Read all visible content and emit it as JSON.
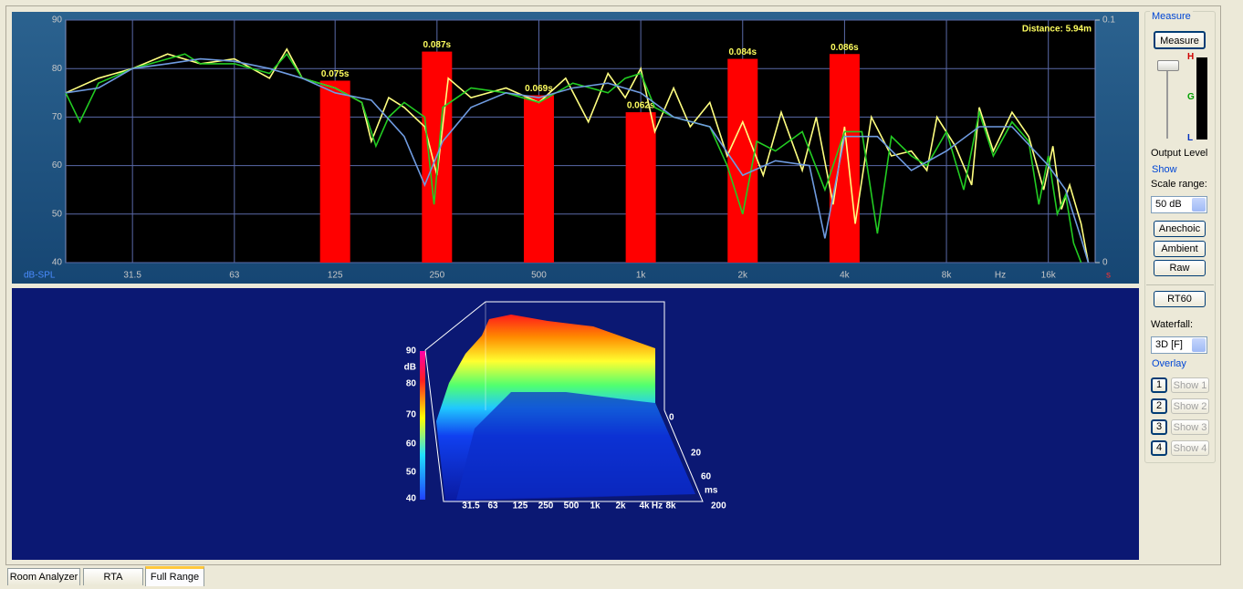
{
  "chart_data": {
    "type": "line",
    "annotation": "Distance: 5.94m",
    "xlabel": "Hz",
    "ylabel": "dB-SPL",
    "y2label": "s",
    "xscale": "log",
    "xlim": [
      20,
      22000
    ],
    "xticks": [
      31.5,
      63,
      125,
      250,
      500,
      {
        "value": 1000,
        "label": "1k"
      },
      {
        "value": 2000,
        "label": "2k"
      },
      {
        "value": 4000,
        "label": "4k"
      },
      {
        "value": 8000,
        "label": "8k"
      },
      {
        "value": 16000,
        "label": "16k"
      }
    ],
    "ylim": [
      40,
      90
    ],
    "yticks": [
      40,
      50,
      60,
      70,
      80,
      90
    ],
    "y2lim": [
      0,
      0.1
    ],
    "y2ticks": [
      0,
      0.1
    ],
    "grid": true,
    "series": [
      {
        "color": "#ffff80",
        "x": [
          20,
          25,
          31.5,
          40,
          50,
          63,
          80,
          90,
          100,
          125,
          150,
          160,
          180,
          200,
          230,
          250,
          270,
          315,
          400,
          500,
          600,
          700,
          800,
          900,
          1000,
          1100,
          1250,
          1400,
          1600,
          1800,
          2000,
          2300,
          2600,
          3000,
          3300,
          3700,
          4000,
          4300,
          4800,
          5500,
          6300,
          7000,
          7500,
          8500,
          9500,
          10000,
          11000,
          12500,
          14000,
          15500,
          16500,
          17500,
          18500,
          20000,
          21000
        ],
        "values": [
          75,
          78,
          80,
          83,
          81,
          82,
          78,
          84,
          78,
          76,
          73,
          65,
          74,
          72,
          68,
          58,
          78,
          74,
          76,
          73,
          78,
          69,
          79,
          74,
          80,
          67,
          76,
          68,
          73,
          62,
          69,
          58,
          71,
          59,
          70,
          52,
          68,
          48,
          70,
          62,
          63,
          59,
          70,
          64,
          56,
          72,
          63,
          71,
          66,
          55,
          64,
          51,
          56,
          48,
          40
        ]
      },
      {
        "color": "#22cc22",
        "x": [
          20,
          22,
          25,
          31.5,
          40,
          45,
          50,
          63,
          80,
          90,
          100,
          125,
          150,
          165,
          180,
          200,
          230,
          245,
          260,
          315,
          400,
          500,
          630,
          800,
          900,
          1000,
          1100,
          1250,
          1600,
          1800,
          2000,
          2200,
          2500,
          3000,
          3500,
          4000,
          4500,
          5000,
          5500,
          6300,
          7000,
          8000,
          9000,
          10000,
          11000,
          12500,
          14000,
          15000,
          16000,
          17000,
          18000,
          19000,
          20000
        ],
        "values": [
          75,
          69,
          77,
          80,
          82,
          83,
          81,
          81,
          79,
          83,
          78,
          76,
          73,
          64,
          70,
          73,
          70,
          52,
          72,
          76,
          75,
          73,
          77,
          75,
          78,
          79,
          72,
          70,
          68,
          60,
          50,
          65,
          63,
          67,
          55,
          67,
          67,
          46,
          66,
          62,
          60,
          67,
          55,
          71,
          62,
          69,
          65,
          52,
          62,
          50,
          54,
          44,
          40
        ]
      },
      {
        "color": "#6f9be0",
        "x": [
          20,
          25,
          31.5,
          40,
          50,
          63,
          80,
          100,
          125,
          160,
          200,
          230,
          260,
          315,
          400,
          500,
          630,
          800,
          1000,
          1250,
          1600,
          2000,
          2500,
          3150,
          3500,
          4000,
          5000,
          6300,
          8000,
          10000,
          12500,
          16000,
          18000,
          20000,
          21000
        ],
        "values": [
          75,
          76,
          80,
          81,
          82,
          81.5,
          80,
          78,
          75,
          73.5,
          66,
          56,
          65,
          72,
          75,
          74,
          76,
          77,
          75,
          70,
          68,
          58,
          61,
          60,
          45,
          66,
          66,
          59,
          63,
          68,
          68,
          60,
          55,
          45,
          40
        ]
      },
      {
        "type": "bar",
        "axis": "y2",
        "color": "#ff0000",
        "x": [
          125,
          250,
          500,
          1000,
          2000,
          4000
        ],
        "values": [
          0.075,
          0.087,
          0.069,
          0.062,
          0.084,
          0.086
        ],
        "value_labels": [
          "0.075s",
          "0.087s",
          "0.069s",
          "0.062s",
          "0.084s",
          "0.086s"
        ]
      }
    ]
  },
  "waterfall": {
    "zlabels": [
      "90",
      "80",
      "70",
      "60",
      "50",
      "40"
    ],
    "zunit": "dB",
    "xlabels": [
      "31.5",
      "63",
      "125",
      "250",
      "500",
      "1k",
      "2k",
      "4k",
      "8k"
    ],
    "xunit": "Hz",
    "tlabels": [
      "0",
      "20",
      "60",
      "200"
    ],
    "tunit": "ms"
  },
  "panel": {
    "measure_group": "Measure",
    "measure_button": "Measure",
    "meter_labels": [
      "H",
      "G",
      "L"
    ],
    "output_level": "Output Level",
    "show_group": "Show",
    "scale_range_label": "Scale range:",
    "scale_range": "50 dB",
    "buttons": [
      "Anechoic",
      "Ambient",
      "Raw"
    ],
    "rt60": "RT60",
    "waterfall_label": "Waterfall:",
    "waterfall_mode": "3D [F]",
    "overlay_group": "Overlay",
    "overlays": [
      {
        "number": "1",
        "label": "Show 1"
      },
      {
        "number": "2",
        "label": "Show 2"
      },
      {
        "number": "3",
        "label": "Show 3"
      },
      {
        "number": "4",
        "label": "Show 4"
      }
    ]
  },
  "tabs": [
    "Room Analyzer",
    "RTA",
    "Full Range"
  ]
}
